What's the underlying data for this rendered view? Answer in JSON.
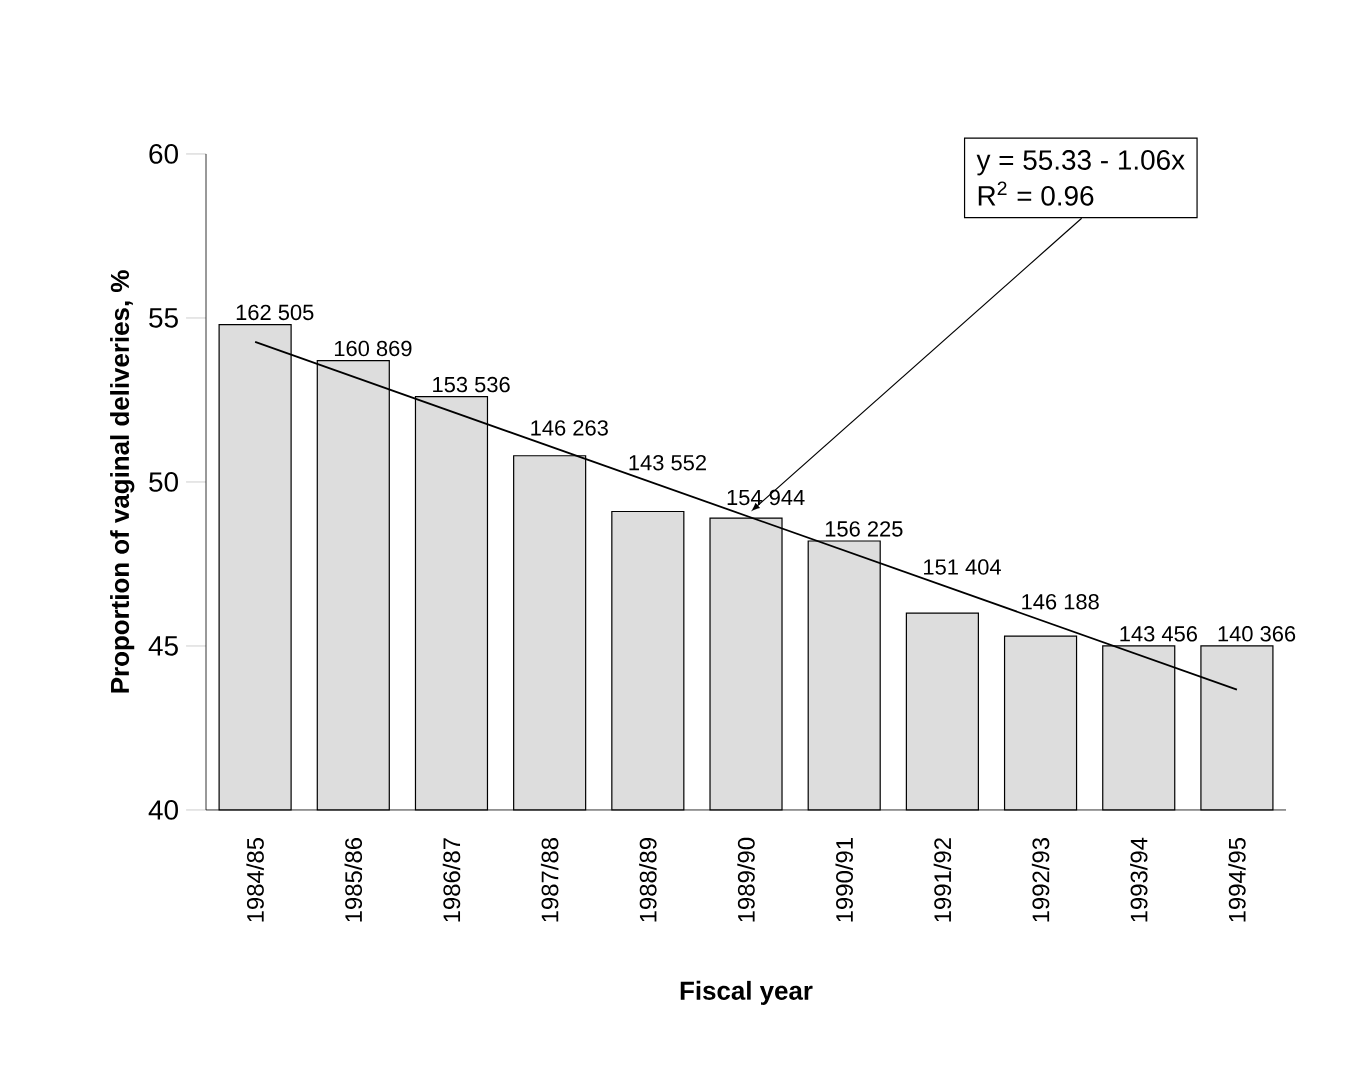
{
  "chart_data": {
    "type": "bar",
    "xlabel": "Fiscal year",
    "ylabel": "Proportion of vaginal deliveries, %",
    "categories": [
      "1984/85",
      "1985/86",
      "1986/87",
      "1987/88",
      "1988/89",
      "1989/90",
      "1990/91",
      "1991/92",
      "1992/93",
      "1993/94",
      "1994/95"
    ],
    "series": [
      {
        "color": "#dddddd",
        "values": [
          54.8,
          53.7,
          52.6,
          50.8,
          49.1,
          48.9,
          48.2,
          46.0,
          45.3,
          45.0,
          45.0
        ]
      },
      {
        "type": "line",
        "color": "#000000",
        "x": [
          "1984/85",
          "1994/95"
        ],
        "values": [
          54.27,
          43.67
        ]
      }
    ],
    "annotations": [
      "y = 55.33 - 1.06x",
      "R$^{2}$ = 0.96",
      {
        "text": "162 505",
        "x": "1984/85",
        "y": 54.8
      },
      {
        "text": "160 869",
        "x": "1985/86",
        "y": 53.7
      },
      {
        "text": "153 536",
        "x": "1986/87",
        "y": 52.6
      },
      {
        "text": "146 263",
        "x": "1987/88",
        "y": 50.8
      },
      {
        "text": "143 552",
        "x": "1988/89",
        "y": 49.1
      },
      {
        "text": "154 944",
        "x": "1989/90",
        "y": 48.9
      },
      {
        "text": "156 225",
        "x": "1990/91",
        "y": 48.2
      },
      {
        "text": "151 404",
        "x": "1991/92",
        "y": 46.0
      },
      {
        "text": "146 188",
        "x": "1992/93",
        "y": 45.3
      },
      {
        "text": "143 456",
        "x": "1993/94",
        "y": 45.0
      },
      {
        "text": "140 366",
        "x": "1994/95",
        "y": 45.0
      }
    ],
    "ylim": [
      40,
      60
    ],
    "yticks": [
      40,
      45,
      50,
      55,
      60
    ],
    "grid": false
  }
}
